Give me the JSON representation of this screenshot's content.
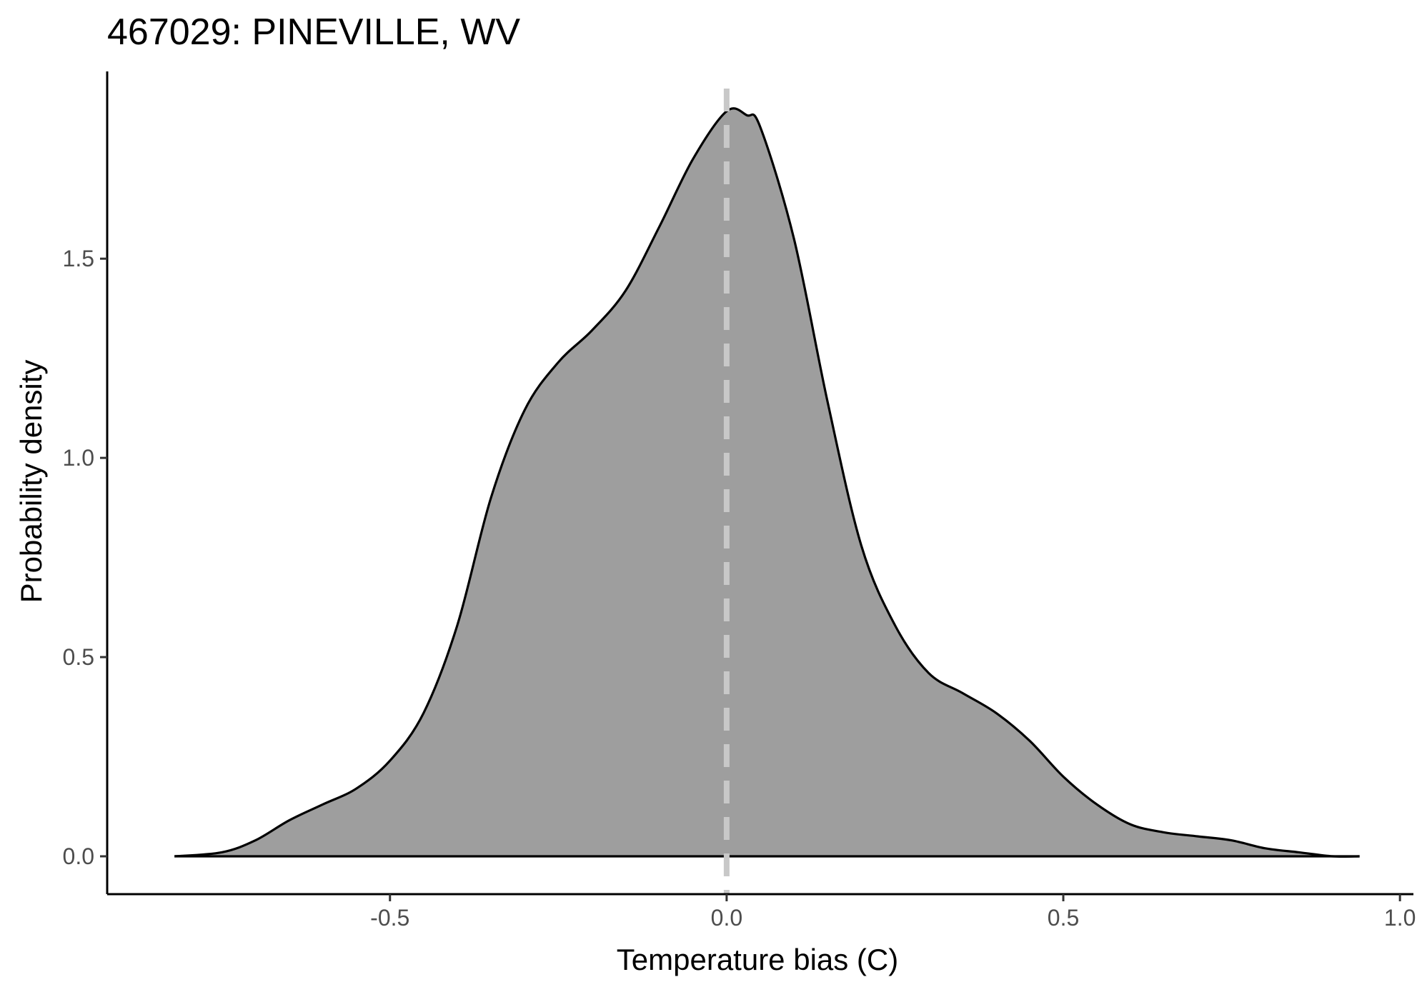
{
  "chart_data": {
    "type": "area",
    "title": "467029: PINEVILLE, WV",
    "xlabel": "Temperature bias (C)",
    "ylabel": "Probability density",
    "xlim": [
      -0.92,
      1.02
    ],
    "ylim": [
      -0.095,
      1.97
    ],
    "x_ticks": [
      -0.5,
      0.0,
      0.5,
      1.0
    ],
    "x_tick_labels": [
      "-0.5",
      "0.0",
      "0.5",
      "1.0"
    ],
    "y_ticks": [
      0.0,
      0.5,
      1.0,
      1.5
    ],
    "y_tick_labels": [
      "0.0",
      "0.5",
      "1.0",
      "1.5"
    ],
    "grid": false,
    "reference_line": {
      "x": 0.0,
      "style": "dashed",
      "color": "#c8c8c8"
    },
    "fill_color": "#9e9e9e",
    "line_color": "#000000",
    "series": [
      {
        "x": [
          -0.82,
          -0.75,
          -0.7,
          -0.65,
          -0.6,
          -0.55,
          -0.5,
          -0.45,
          -0.4,
          -0.35,
          -0.3,
          -0.25,
          -0.2,
          -0.15,
          -0.1,
          -0.05,
          0.0,
          0.03,
          0.05,
          0.1,
          0.15,
          0.2,
          0.25,
          0.3,
          0.35,
          0.4,
          0.45,
          0.5,
          0.55,
          0.6,
          0.65,
          0.7,
          0.75,
          0.8,
          0.85,
          0.9,
          0.94
        ],
        "y": [
          0.0,
          0.01,
          0.04,
          0.09,
          0.13,
          0.17,
          0.24,
          0.36,
          0.58,
          0.9,
          1.12,
          1.24,
          1.32,
          1.42,
          1.58,
          1.75,
          1.87,
          1.86,
          1.83,
          1.55,
          1.14,
          0.78,
          0.58,
          0.46,
          0.41,
          0.36,
          0.29,
          0.2,
          0.13,
          0.08,
          0.06,
          0.05,
          0.04,
          0.02,
          0.01,
          0.0,
          0.0
        ]
      }
    ]
  }
}
